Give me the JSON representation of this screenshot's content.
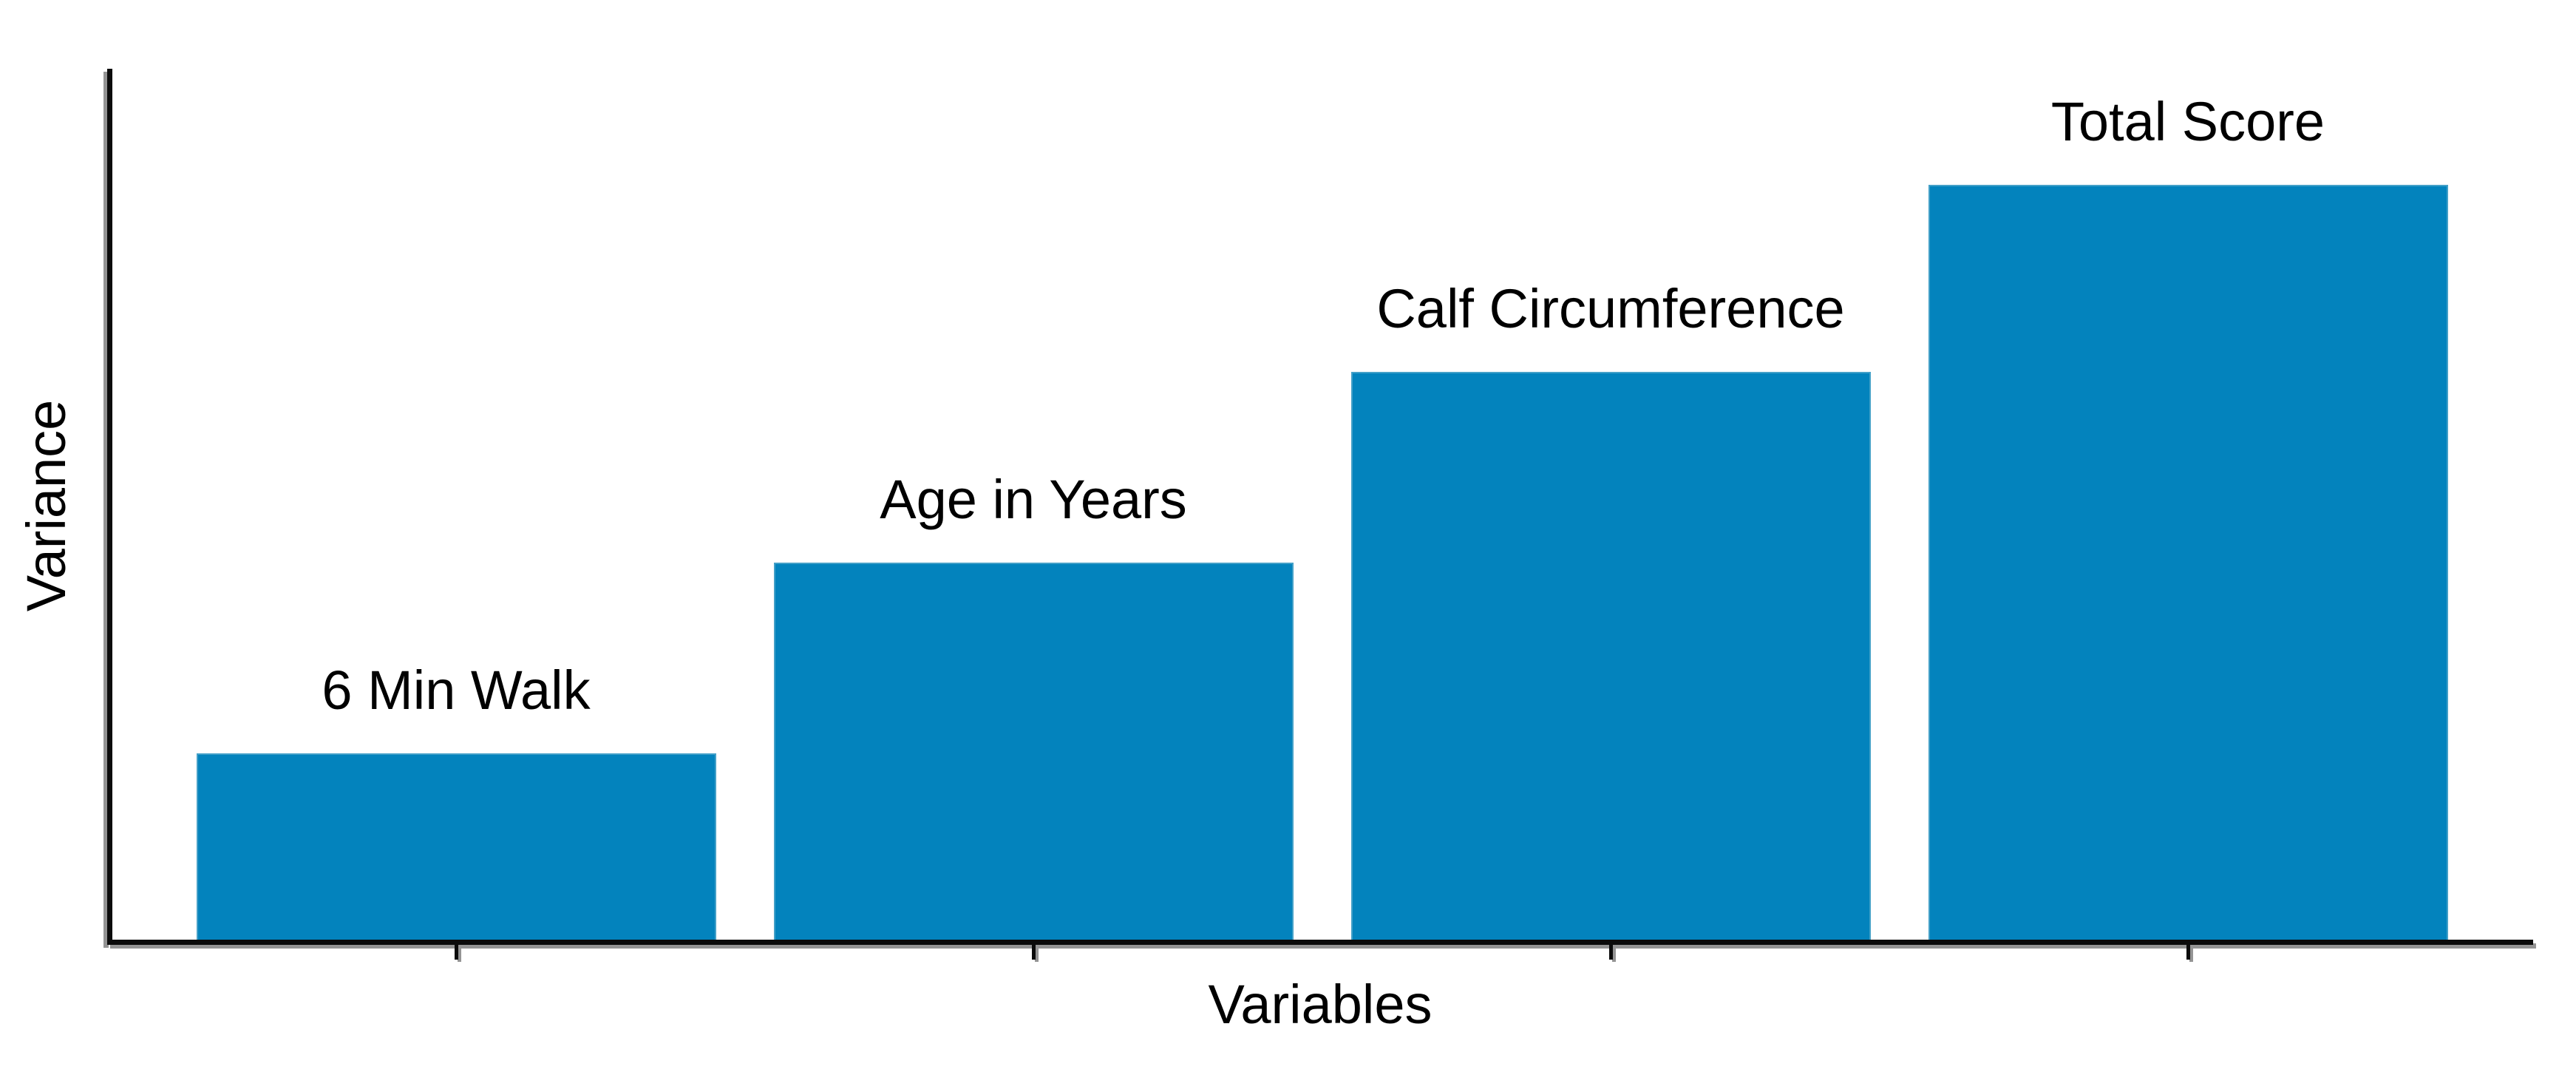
{
  "chart_data": {
    "type": "bar",
    "title": "",
    "categories": [
      "6 Min Walk",
      "Age in Years",
      "Calf Circumference",
      "Total Score"
    ],
    "values": [
      0.214,
      0.433,
      0.652,
      0.867
    ],
    "xlabel": "Variables",
    "ylabel": "Variance",
    "ylim": [
      0,
      1
    ],
    "y_tick_labels": [],
    "grid": false,
    "legend": false,
    "bar_labels_position": "above-bars",
    "bar_color": "#0383BD",
    "bar_edge_color": "#43A0C8",
    "axis_color": "#0B0B0B",
    "axis_shadow_color": "#949494",
    "text_color": "#000000",
    "background_color": "#FFFFFF"
  }
}
